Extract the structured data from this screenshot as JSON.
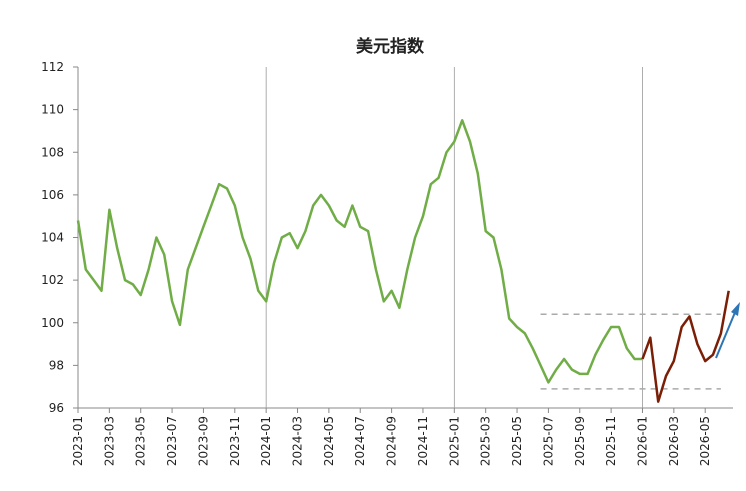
{
  "chart_data": {
    "type": "line",
    "title": "美元指数",
    "categories": [
      "2023-01",
      null,
      null,
      null,
      "2023-03",
      null,
      null,
      null,
      "2023-05",
      null,
      null,
      null,
      "2023-07",
      null,
      null,
      null,
      "2023-09",
      null,
      null,
      null,
      "2023-11",
      null,
      null,
      null,
      "2024-01",
      null,
      null,
      null,
      "2024-03",
      null,
      null,
      null,
      "2024-05",
      null,
      null,
      null,
      "2024-07",
      null,
      null,
      null,
      "2024-09",
      null,
      null,
      null,
      "2024-11",
      null,
      null,
      null,
      "2025-01",
      null,
      null,
      null,
      "2025-03",
      null,
      null,
      null,
      "2025-05",
      null,
      null,
      null,
      "2025-07",
      null,
      null,
      null,
      "2025-09",
      null,
      null,
      null,
      "2025-11",
      null,
      null,
      null,
      "2026-01",
      null,
      null,
      null,
      "2026-03",
      null,
      null,
      null,
      "2026-05",
      null,
      null,
      null
    ],
    "series": [
      {
        "color": "#70ad47",
        "values": [
          104.8,
          102.5,
          102,
          101.5,
          105.3,
          103.5,
          102,
          101.8,
          101.3,
          102.5,
          104,
          103.2,
          101,
          99.9,
          102.5,
          103.5,
          104.5,
          105.5,
          106.5,
          106.3,
          105.5,
          104,
          103,
          101.5,
          101,
          102.8,
          104,
          104.2,
          103.5,
          104.3,
          105.5,
          106,
          105.5,
          104.8,
          104.5,
          105.5,
          104.5,
          104.3,
          102.5,
          101,
          101.5,
          100.7,
          102.5,
          104,
          105,
          106.5,
          106.8,
          108,
          108.5,
          109.5,
          108.5,
          107,
          104.3,
          104,
          102.5,
          100.2,
          99.8,
          99.5,
          98.8,
          98,
          97.2,
          97.8,
          98.3,
          97.8,
          97.6,
          97.6,
          98.5,
          99.2,
          99.8,
          99.8,
          98.8,
          98.3,
          98.3,
          null,
          null,
          null,
          null,
          null,
          null,
          null,
          null,
          null,
          null,
          null
        ]
      },
      {
        "color": "#7b1e06",
        "values": [
          null,
          null,
          null,
          null,
          null,
          null,
          null,
          null,
          null,
          null,
          null,
          null,
          null,
          null,
          null,
          null,
          null,
          null,
          null,
          null,
          null,
          null,
          null,
          null,
          null,
          null,
          null,
          null,
          null,
          null,
          null,
          null,
          null,
          null,
          null,
          null,
          null,
          null,
          null,
          null,
          null,
          null,
          null,
          null,
          null,
          null,
          null,
          null,
          null,
          null,
          null,
          null,
          null,
          null,
          null,
          null,
          null,
          null,
          null,
          null,
          null,
          null,
          null,
          null,
          null,
          null,
          null,
          null,
          null,
          null,
          null,
          null,
          98.3,
          99.3,
          96.3,
          97.5,
          98.2,
          99.8,
          100.3,
          99,
          98.2,
          98.5,
          99.5,
          101.5
        ]
      }
    ],
    "reference_lines": [
      100.4,
      96.9
    ],
    "ylim": [
      96,
      112
    ],
    "yticks": [
      96,
      98,
      100,
      102,
      104,
      106,
      108,
      110,
      112
    ]
  }
}
